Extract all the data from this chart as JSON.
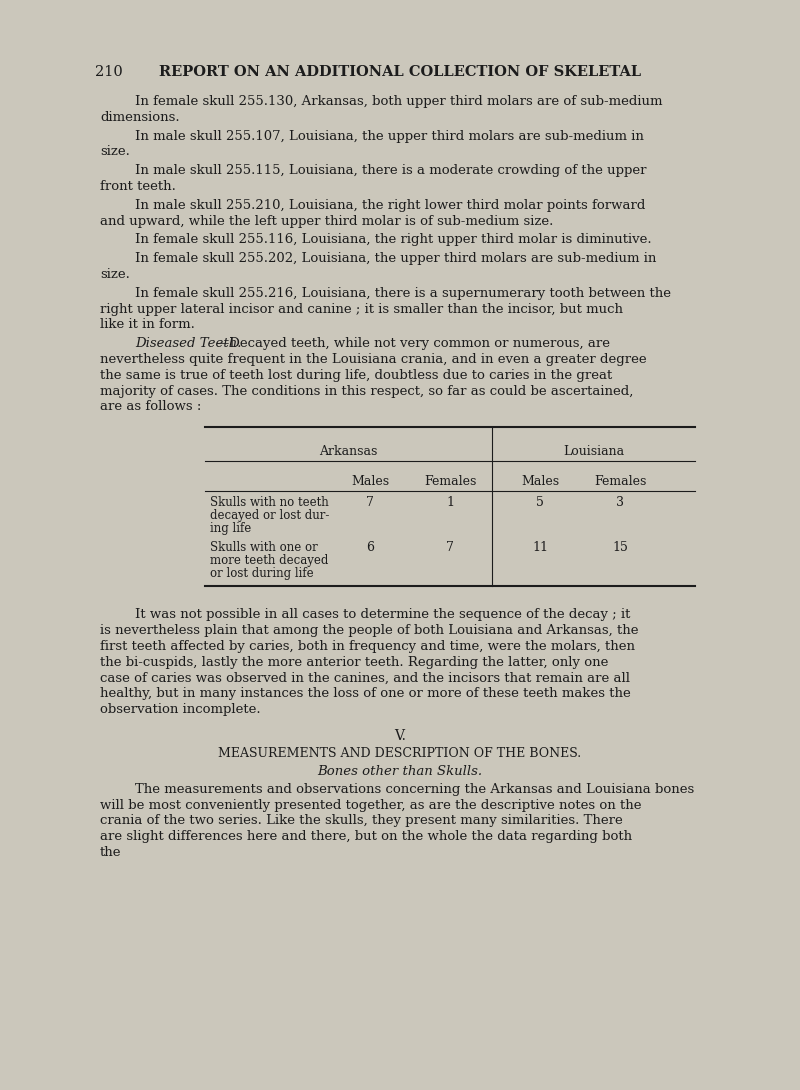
{
  "bg_color": "#cbc7bb",
  "text_color": "#1c1c1c",
  "page_number": "210",
  "header": "REPORT ON AN ADDITIONAL COLLECTION OF SKELETAL",
  "paragraphs": [
    {
      "indent": true,
      "text": "In female skull 255.130, Arkansas, both upper third molars are of sub-medium dimensions."
    },
    {
      "indent": true,
      "text": "In male skull 255.107, Louisiana, the upper third molars are sub-medium in size."
    },
    {
      "indent": true,
      "text": "In male skull 255.115, Louisiana, there is a moderate crowding of the upper front teeth."
    },
    {
      "indent": true,
      "text": "In male skull 255.210, Louisiana, the right lower third molar points forward and upward, while the left upper third molar is of sub-medium size."
    },
    {
      "indent": true,
      "text": "In female skull 255.116, Louisiana, the right upper third molar is diminutive."
    },
    {
      "indent": true,
      "text": "In female skull 255.202, Louisiana, the upper third molars are sub-medium in size."
    },
    {
      "indent": true,
      "text": "In female skull 255.216, Louisiana, there is a supernumerary tooth between the right upper lateral incisor and canine ; it is smaller than the incisor, but much like it in form."
    },
    {
      "indent": true,
      "italic_prefix": "Diseased Teeth.",
      "text": "—Decayed teeth, while not very common or numerous, are nevertheless quite frequent in the Louisiana crania, and in even a greater degree the same is true of teeth lost during life, doubtless due to caries in the great majority of cases.  The conditions in this respect, so far as could be ascertained, are as follows :"
    }
  ],
  "table": {
    "col_header_1": "Arkansas",
    "col_header_2": "Louisiana",
    "sub_headers": [
      "Males",
      "Females",
      "Males",
      "Females"
    ],
    "rows": [
      {
        "label_lines": [
          "Skulls with no teeth",
          "decayed or lost dur-",
          "ing life"
        ],
        "values": [
          "7",
          "1",
          "5",
          "3"
        ]
      },
      {
        "label_lines": [
          "Skulls with one or",
          "more teeth decayed",
          "or lost during life"
        ],
        "values": [
          "6",
          "7",
          "11",
          "15"
        ]
      }
    ]
  },
  "post_table_paragraphs": [
    {
      "indent": true,
      "text": "It was not possible in all cases to determine the sequence of the decay ; it is nevertheless plain that among the people of both Louisiana and Arkansas, the first teeth affected by caries, both in frequency and time, were the molars, then the bi-cuspids, lastly the more anterior teeth.  Regarding the latter, only one case of caries was observed in the canines, and the incisors that remain are all healthy, but in many instances the loss of one or more of these teeth makes the observation incomplete."
    }
  ],
  "section_v": "V.",
  "section_v_title": "MEASUREMENTS AND DESCRIPTION OF THE BONES.",
  "section_v_subtitle": "Bones other than Skulls.",
  "final_paragraph": {
    "indent": true,
    "text": "The measurements and observations concerning the Arkansas and Louisiana bones will be most conveniently presented together, as are the descriptive notes on the crania of the two series.  Like the skulls, they present many similarities.  There are slight differences here and there, but on the whole the data regarding both the"
  }
}
